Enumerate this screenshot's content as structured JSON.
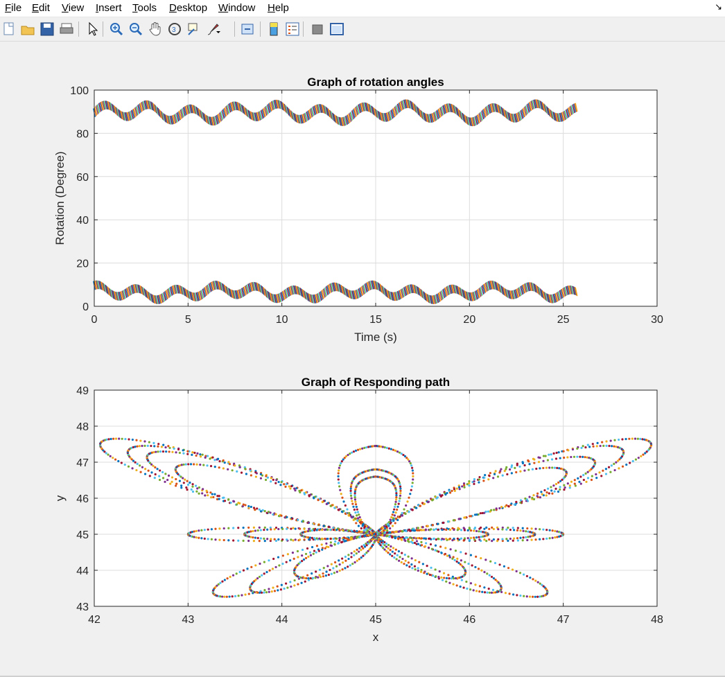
{
  "menubar": {
    "items": [
      {
        "label": "File",
        "ul": "F"
      },
      {
        "label": "Edit",
        "ul": "E"
      },
      {
        "label": "View",
        "ul": "V"
      },
      {
        "label": "Insert",
        "ul": "I"
      },
      {
        "label": "Tools",
        "ul": "T"
      },
      {
        "label": "Desktop",
        "ul": "D"
      },
      {
        "label": "Window",
        "ul": "W"
      },
      {
        "label": "Help",
        "ul": "H"
      }
    ]
  },
  "toolbar": {
    "buttons": [
      "new-figure-icon",
      "open-file-icon",
      "save-icon",
      "print-icon",
      "pointer-icon",
      "zoom-in-icon",
      "zoom-out-icon",
      "pan-icon",
      "rotate-3d-icon",
      "data-cursor-icon",
      "brush-icon",
      "link-plot-icon",
      "colorbar-icon",
      "legend-icon",
      "hide-plot-tools-icon",
      "show-plot-tools-icon"
    ]
  },
  "colors": {
    "series": [
      "#0072bd",
      "#d95319",
      "#edb120",
      "#7e2f8e",
      "#77ac30",
      "#4dbeee",
      "#a2142f"
    ],
    "background": "#f0f0f0",
    "axes_bg": "#ffffff",
    "grid": "#dfdfdf"
  },
  "chart_data": [
    {
      "type": "line",
      "title": "Graph of rotation angles",
      "xlabel": "Time (s)",
      "ylabel": "Rotation (Degree)",
      "xlim": [
        0,
        30
      ],
      "ylim": [
        0,
        100
      ],
      "xticks": [
        0,
        5,
        10,
        15,
        20,
        25,
        30
      ],
      "yticks": [
        0,
        20,
        40,
        60,
        80,
        100
      ],
      "grid": true,
      "x_end": 25.7,
      "series": [
        {
          "mean": 89.5,
          "amplitude": 3,
          "period": 2.3,
          "band_width": 4
        },
        {
          "mean": 6.5,
          "amplitude": 2.3,
          "period": 2.1,
          "band_width": 4
        }
      ]
    },
    {
      "type": "scatter",
      "title": "Graph of Responding path",
      "xlabel": "x",
      "ylabel": "y",
      "xlim": [
        42,
        48
      ],
      "ylim": [
        43,
        49
      ],
      "xticks": [
        42,
        43,
        44,
        45,
        46,
        47,
        48
      ],
      "yticks": [
        43,
        44,
        45,
        46,
        47,
        48,
        49
      ],
      "grid": true,
      "center": [
        45,
        45
      ],
      "wings": [
        {
          "tip": [
            42.1,
            47.6
          ],
          "width": 0.5
        },
        {
          "tip": [
            42.4,
            47.4
          ],
          "width": 0.5
        },
        {
          "tip": [
            42.6,
            47.25
          ],
          "width": 0.45
        },
        {
          "tip": [
            42.9,
            46.9
          ],
          "width": 0.4
        },
        {
          "tip": [
            47.9,
            47.6
          ],
          "width": 0.5
        },
        {
          "tip": [
            47.6,
            47.4
          ],
          "width": 0.5
        },
        {
          "tip": [
            47.3,
            47.1
          ],
          "width": 0.45
        },
        {
          "tip": [
            47.0,
            46.8
          ],
          "width": 0.4
        },
        {
          "tip": [
            43.0,
            45.0
          ],
          "width": 0.22
        },
        {
          "tip": [
            43.6,
            45.0
          ],
          "width": 0.18
        },
        {
          "tip": [
            44.2,
            45.0
          ],
          "width": 0.15
        },
        {
          "tip": [
            47.0,
            45.0
          ],
          "width": 0.22
        },
        {
          "tip": [
            46.7,
            45.0
          ],
          "width": 0.18
        },
        {
          "tip": [
            46.2,
            45.0
          ],
          "width": 0.15
        },
        {
          "tip": [
            43.3,
            43.3
          ],
          "width": 0.35
        },
        {
          "tip": [
            43.7,
            43.4
          ],
          "width": 0.3
        },
        {
          "tip": [
            44.2,
            43.8
          ],
          "width": 0.3
        },
        {
          "tip": [
            46.8,
            43.3
          ],
          "width": 0.35
        },
        {
          "tip": [
            46.3,
            43.4
          ],
          "width": 0.3
        },
        {
          "tip": [
            45.9,
            43.8
          ],
          "width": 0.3
        }
      ],
      "teardrops": [
        {
          "top": 47.45,
          "radius": 0.45
        },
        {
          "top": 46.8,
          "radius": 0.3
        },
        {
          "top": 46.6,
          "radius": 0.25
        }
      ]
    }
  ]
}
